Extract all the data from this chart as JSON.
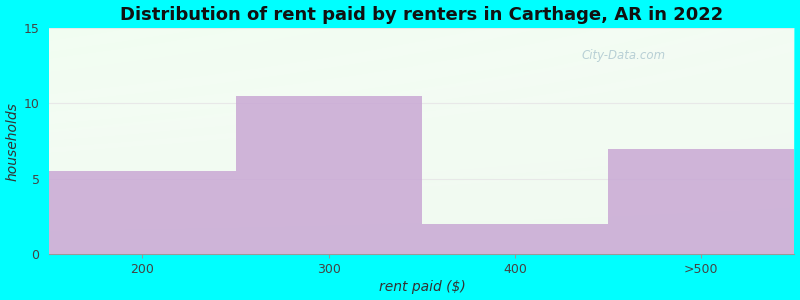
{
  "title": "Distribution of rent paid by renters in Carthage, AR in 2022",
  "categories": [
    "200",
    "300",
    "400",
    ">500"
  ],
  "values": [
    5.5,
    10.5,
    2.0,
    7.0
  ],
  "bar_color": "#c9a8d4",
  "bar_alpha": 0.85,
  "xlabel": "rent paid ($)",
  "ylabel": "households",
  "ylim": [
    0,
    15
  ],
  "yticks": [
    0,
    5,
    10,
    15
  ],
  "outer_background": "#00ffff",
  "title_fontsize": 13,
  "axis_label_fontsize": 10,
  "tick_fontsize": 9,
  "watermark": "City-Data.com"
}
